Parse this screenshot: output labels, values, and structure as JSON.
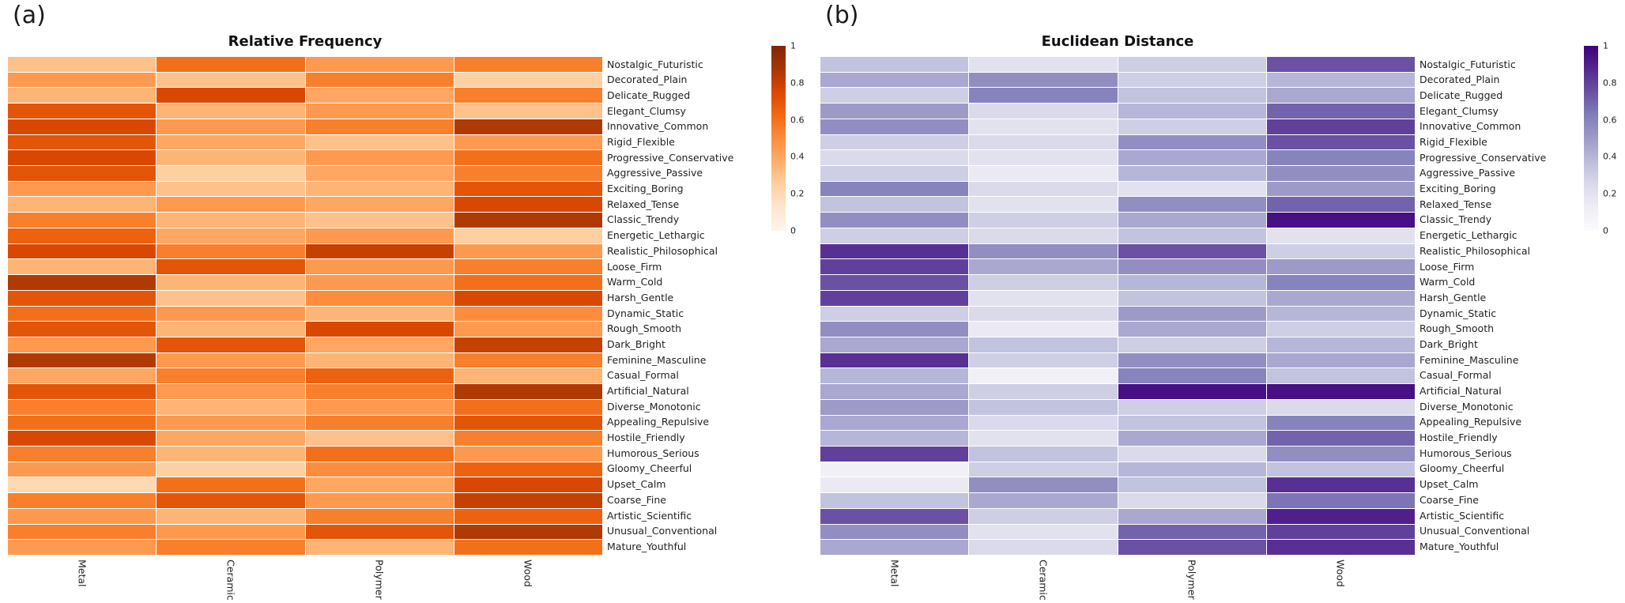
{
  "chart_data": [
    {
      "type": "heatmap",
      "panel_label": "(a)",
      "title": "Relative Frequency",
      "columns": [
        "Metal",
        "Ceramic",
        "Polymer",
        "Wood"
      ],
      "rows": [
        "Nostalgic_Futuristic",
        "Decorated_Plain",
        "Delicate_Rugged",
        "Elegant_Clumsy",
        "Innovative_Common",
        "Rigid_Flexible",
        "Progressive_Conservative",
        "Aggressive_Passive",
        "Exciting_Boring",
        "Relaxed_Tense",
        "Classic_Trendy",
        "Energetic_Lethargic",
        "Realistic_Philosophical",
        "Loose_Firm",
        "Warm_Cold",
        "Harsh_Gentle",
        "Dynamic_Static",
        "Rough_Smooth",
        "Dark_Bright",
        "Feminine_Masculine",
        "Casual_Formal",
        "Artificial_Natural",
        "Diverse_Monotonic",
        "Appealing_Repulsive",
        "Hostile_Friendly",
        "Humorous_Serious",
        "Gloomy_Cheerful",
        "Upset_Calm",
        "Coarse_Fine",
        "Artistic_Scientific",
        "Unusual_Conventional",
        "Mature_Youthful"
      ],
      "values": [
        [
          0.3,
          0.6,
          0.45,
          0.55
        ],
        [
          0.45,
          0.3,
          0.55,
          0.25
        ],
        [
          0.35,
          0.75,
          0.4,
          0.55
        ],
        [
          0.7,
          0.35,
          0.45,
          0.3
        ],
        [
          0.75,
          0.45,
          0.55,
          0.85
        ],
        [
          0.7,
          0.4,
          0.3,
          0.45
        ],
        [
          0.75,
          0.35,
          0.45,
          0.6
        ],
        [
          0.7,
          0.25,
          0.4,
          0.55
        ],
        [
          0.45,
          0.3,
          0.35,
          0.7
        ],
        [
          0.35,
          0.45,
          0.4,
          0.75
        ],
        [
          0.55,
          0.35,
          0.3,
          0.85
        ],
        [
          0.65,
          0.4,
          0.45,
          0.25
        ],
        [
          0.75,
          0.55,
          0.8,
          0.45
        ],
        [
          0.35,
          0.7,
          0.45,
          0.55
        ],
        [
          0.85,
          0.35,
          0.45,
          0.6
        ],
        [
          0.7,
          0.3,
          0.5,
          0.75
        ],
        [
          0.6,
          0.45,
          0.35,
          0.5
        ],
        [
          0.7,
          0.35,
          0.75,
          0.45
        ],
        [
          0.45,
          0.7,
          0.4,
          0.8
        ],
        [
          0.85,
          0.45,
          0.35,
          0.55
        ],
        [
          0.4,
          0.55,
          0.65,
          0.35
        ],
        [
          0.7,
          0.45,
          0.55,
          0.85
        ],
        [
          0.55,
          0.35,
          0.45,
          0.6
        ],
        [
          0.6,
          0.45,
          0.55,
          0.7
        ],
        [
          0.75,
          0.4,
          0.3,
          0.55
        ],
        [
          0.55,
          0.35,
          0.6,
          0.45
        ],
        [
          0.45,
          0.25,
          0.5,
          0.65
        ],
        [
          0.2,
          0.6,
          0.4,
          0.75
        ],
        [
          0.55,
          0.7,
          0.45,
          0.8
        ],
        [
          0.45,
          0.35,
          0.55,
          0.65
        ],
        [
          0.55,
          0.45,
          0.7,
          0.85
        ],
        [
          0.45,
          0.55,
          0.35,
          0.6
        ]
      ],
      "vmin": 0,
      "vmax": 1,
      "colormap": [
        "#fff5eb",
        "#fee6ce",
        "#fdd0a2",
        "#fdae6b",
        "#fd8d3c",
        "#f16913",
        "#d94801",
        "#a63603",
        "#7f2704"
      ],
      "colorbar_ticks": [
        "1",
        "0.8",
        "0.6",
        "0.4",
        "0.2",
        "0"
      ],
      "legend": "colorbar-right",
      "grid": false
    },
    {
      "type": "heatmap",
      "panel_label": "(b)",
      "title": "Euclidean Distance",
      "columns": [
        "Metal",
        "Ceramic",
        "Polymer",
        "Wood"
      ],
      "rows": [
        "Nostalgic_Futuristic",
        "Decorated_Plain",
        "Delicate_Rugged",
        "Elegant_Clumsy",
        "Innovative_Common",
        "Rigid_Flexible",
        "Progressive_Conservative",
        "Aggressive_Passive",
        "Exciting_Boring",
        "Relaxed_Tense",
        "Classic_Trendy",
        "Energetic_Lethargic",
        "Realistic_Philosophical",
        "Loose_Firm",
        "Warm_Cold",
        "Harsh_Gentle",
        "Dynamic_Static",
        "Rough_Smooth",
        "Dark_Bright",
        "Feminine_Masculine",
        "Casual_Formal",
        "Artificial_Natural",
        "Diverse_Monotonic",
        "Appealing_Repulsive",
        "Hostile_Friendly",
        "Humorous_Serious",
        "Gloomy_Cheerful",
        "Upset_Calm",
        "Coarse_Fine",
        "Artistic_Scientific",
        "Unusual_Conventional",
        "Mature_Youthful"
      ],
      "values": [
        [
          0.35,
          0.2,
          0.3,
          0.75
        ],
        [
          0.45,
          0.55,
          0.3,
          0.4
        ],
        [
          0.3,
          0.6,
          0.35,
          0.45
        ],
        [
          0.5,
          0.25,
          0.4,
          0.7
        ],
        [
          0.55,
          0.2,
          0.3,
          0.8
        ],
        [
          0.3,
          0.25,
          0.55,
          0.75
        ],
        [
          0.25,
          0.2,
          0.45,
          0.6
        ],
        [
          0.3,
          0.15,
          0.4,
          0.55
        ],
        [
          0.6,
          0.25,
          0.2,
          0.5
        ],
        [
          0.35,
          0.2,
          0.55,
          0.7
        ],
        [
          0.55,
          0.3,
          0.45,
          0.95
        ],
        [
          0.3,
          0.25,
          0.35,
          0.2
        ],
        [
          0.85,
          0.55,
          0.75,
          0.3
        ],
        [
          0.8,
          0.45,
          0.55,
          0.5
        ],
        [
          0.75,
          0.3,
          0.4,
          0.6
        ],
        [
          0.8,
          0.2,
          0.35,
          0.45
        ],
        [
          0.3,
          0.25,
          0.5,
          0.4
        ],
        [
          0.55,
          0.15,
          0.45,
          0.3
        ],
        [
          0.45,
          0.35,
          0.3,
          0.4
        ],
        [
          0.85,
          0.3,
          0.55,
          0.45
        ],
        [
          0.4,
          0.1,
          0.6,
          0.35
        ],
        [
          0.45,
          0.3,
          0.95,
          0.95
        ],
        [
          0.5,
          0.35,
          0.3,
          0.25
        ],
        [
          0.45,
          0.25,
          0.35,
          0.6
        ],
        [
          0.4,
          0.2,
          0.45,
          0.7
        ],
        [
          0.8,
          0.35,
          0.25,
          0.55
        ],
        [
          0.1,
          0.3,
          0.4,
          0.35
        ],
        [
          0.15,
          0.55,
          0.35,
          0.85
        ],
        [
          0.35,
          0.45,
          0.25,
          0.65
        ],
        [
          0.75,
          0.3,
          0.45,
          0.9
        ],
        [
          0.55,
          0.2,
          0.7,
          0.8
        ],
        [
          0.45,
          0.25,
          0.75,
          0.85
        ]
      ],
      "vmin": 0,
      "vmax": 1,
      "colormap": [
        "#fcfbfd",
        "#efedf5",
        "#dadaeb",
        "#bcbddc",
        "#9e9ac8",
        "#807dba",
        "#6a51a3",
        "#54278f",
        "#3f007d"
      ],
      "colorbar_ticks": [
        "1",
        "0.8",
        "0.6",
        "0.4",
        "0.2",
        "0"
      ],
      "legend": "colorbar-right",
      "grid": false
    }
  ]
}
